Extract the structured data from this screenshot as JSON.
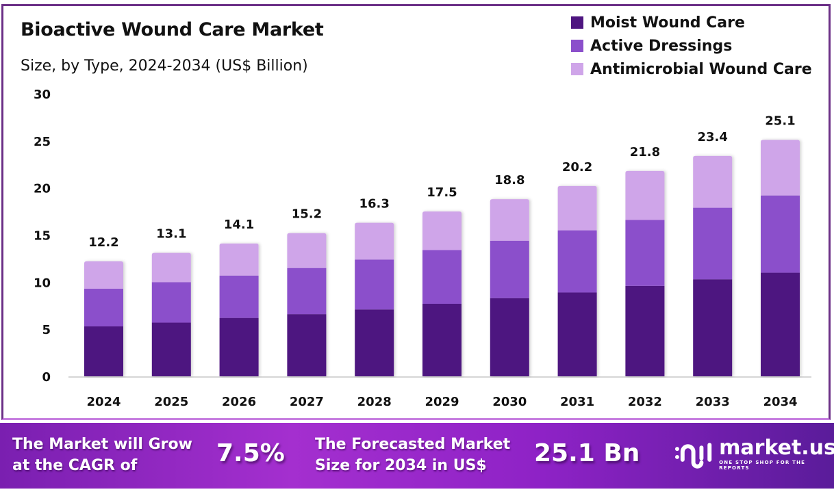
{
  "header": {
    "title": "Bioactive Wound Care Market",
    "subtitle": "Size, by Type, 2024-2034 (US$ Billion)"
  },
  "legend": [
    {
      "label": "Moist Wound Care",
      "color": "#4e1580"
    },
    {
      "label": "Active Dressings",
      "color": "#8b4fcb"
    },
    {
      "label": "Antimicrobial Wound Care",
      "color": "#cfa5e9"
    }
  ],
  "chart_data": {
    "type": "bar",
    "stacked": true,
    "title": "Bioactive Wound Care Market",
    "subtitle": "Size, by Type, 2024-2034 (US$ Billion)",
    "xlabel": "",
    "ylabel": "",
    "ylim": [
      0,
      30
    ],
    "yticks": [
      0,
      5,
      10,
      15,
      20,
      25,
      30
    ],
    "grid": false,
    "legend_position": "top-right",
    "categories": [
      "2024",
      "2025",
      "2026",
      "2027",
      "2028",
      "2029",
      "2030",
      "2031",
      "2032",
      "2033",
      "2034"
    ],
    "series": [
      {
        "name": "Moist Wound Care",
        "color": "#4e1580",
        "values": [
          5.3,
          5.7,
          6.2,
          6.6,
          7.1,
          7.7,
          8.3,
          8.9,
          9.6,
          10.3,
          11.0
        ]
      },
      {
        "name": "Active Dressings",
        "color": "#8b4fcb",
        "values": [
          4.0,
          4.3,
          4.5,
          4.9,
          5.3,
          5.7,
          6.1,
          6.6,
          7.0,
          7.6,
          8.2
        ]
      },
      {
        "name": "Antimicrobial Wound Care",
        "color": "#cfa5e9",
        "values": [
          2.9,
          3.1,
          3.4,
          3.7,
          3.9,
          4.1,
          4.4,
          4.7,
          5.2,
          5.5,
          5.9
        ]
      }
    ],
    "totals": [
      12.2,
      13.1,
      14.1,
      15.2,
      16.3,
      17.5,
      18.8,
      20.2,
      21.8,
      23.4,
      25.1
    ],
    "total_labels": [
      "12.2",
      "13.1",
      "14.1",
      "15.2",
      "16.3",
      "17.5",
      "18.8",
      "20.2",
      "21.8",
      "23.4",
      "25.1"
    ]
  },
  "footer": {
    "cagr_text_line1": "The Market will Grow",
    "cagr_text_line2": "at the CAGR of",
    "cagr_value": "7.5%",
    "forecast_text_line1": "The Forecasted Market",
    "forecast_text_line2": "Size for 2034 in US$",
    "forecast_value": "25.1 Bn",
    "logo_name": "market.us",
    "logo_tagline": "ONE STOP SHOP FOR THE REPORTS"
  }
}
